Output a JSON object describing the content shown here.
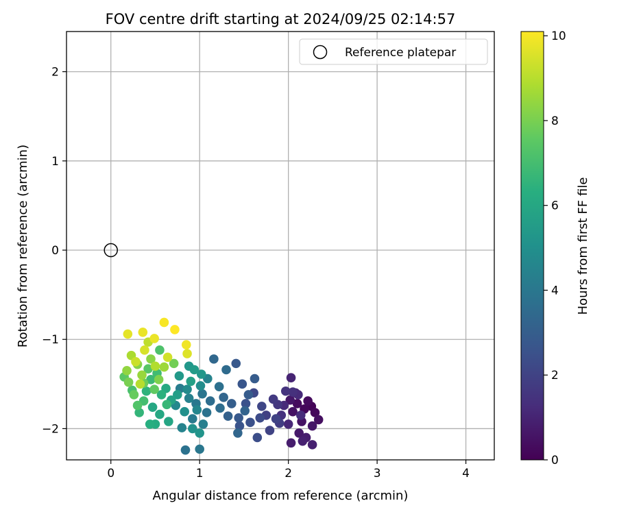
{
  "chart_data": {
    "type": "scatter",
    "title": "FOV centre drift starting at 2024/09/25 02:14:57",
    "xlabel": "Angular distance from reference (arcmin)",
    "ylabel": "Rotation from reference (arcmin)",
    "xlim": [
      -0.5,
      4.32
    ],
    "ylim": [
      -2.35,
      2.45
    ],
    "xticks": [
      0,
      1,
      2,
      3,
      4
    ],
    "yticks": [
      -2,
      -1,
      0,
      1,
      2
    ],
    "x_tick_labels": [
      "0",
      "1",
      "2",
      "3",
      "4"
    ],
    "y_tick_labels": [
      "−2",
      "−1",
      "0",
      "1",
      "2"
    ],
    "grid": true,
    "legend": {
      "placement": "top-right",
      "entries": [
        "Reference platepar"
      ]
    },
    "reference_point": {
      "x": 0,
      "y": 0,
      "label": "Reference platepar"
    },
    "colorbar": {
      "label": "Hours from first FF file",
      "colormap": "viridis",
      "range": [
        0,
        10.1
      ],
      "ticks": [
        0,
        2,
        4,
        6,
        8,
        10
      ],
      "tick_labels": [
        "0",
        "2",
        "4",
        "6",
        "8",
        "10"
      ]
    },
    "series": [
      {
        "points": [
          [
            2.26,
            -1.75,
            0.1
          ],
          [
            2.18,
            -1.78,
            0.2
          ],
          [
            2.3,
            -1.82,
            0.2
          ],
          [
            2.1,
            -1.72,
            0.3
          ],
          [
            2.22,
            -1.69,
            0.3
          ],
          [
            2.34,
            -1.9,
            0.4
          ],
          [
            2.05,
            -1.81,
            0.5
          ],
          [
            2.15,
            -1.92,
            0.5
          ],
          [
            2.27,
            -1.97,
            0.6
          ],
          [
            2.02,
            -1.68,
            0.6
          ],
          [
            2.12,
            -2.05,
            0.7
          ],
          [
            2.2,
            -2.1,
            0.8
          ],
          [
            2.03,
            -2.16,
            0.8
          ],
          [
            2.16,
            -2.14,
            0.9
          ],
          [
            2.27,
            -2.18,
            0.9
          ],
          [
            2.03,
            -1.43,
            1.0
          ],
          [
            2.08,
            -1.6,
            1.0
          ],
          [
            2.0,
            -1.95,
            1.1
          ],
          [
            2.11,
            -1.62,
            1.2
          ],
          [
            1.95,
            -1.74,
            1.2
          ],
          [
            2.14,
            -1.85,
            1.3
          ],
          [
            1.92,
            -1.85,
            1.4
          ],
          [
            2.05,
            -1.59,
            1.4
          ],
          [
            1.97,
            -1.58,
            1.5
          ],
          [
            1.88,
            -1.73,
            1.6
          ],
          [
            1.83,
            -1.67,
            1.7
          ],
          [
            1.9,
            -1.94,
            1.8
          ],
          [
            1.75,
            -1.85,
            1.9
          ],
          [
            1.79,
            -2.02,
            2.0
          ],
          [
            1.86,
            -1.89,
            2.0
          ],
          [
            1.7,
            -1.75,
            2.1
          ],
          [
            1.61,
            -1.6,
            2.2
          ],
          [
            1.68,
            -1.88,
            2.3
          ],
          [
            1.65,
            -2.1,
            2.4
          ],
          [
            1.57,
            -1.93,
            2.5
          ],
          [
            1.52,
            -1.72,
            2.5
          ],
          [
            1.45,
            -1.97,
            2.6
          ],
          [
            1.48,
            -1.5,
            2.7
          ],
          [
            1.41,
            -1.27,
            2.8
          ],
          [
            1.44,
            -1.88,
            2.8
          ],
          [
            1.55,
            -1.62,
            2.9
          ],
          [
            1.62,
            -1.44,
            2.9
          ],
          [
            1.36,
            -1.72,
            3.0
          ],
          [
            1.32,
            -1.86,
            3.1
          ],
          [
            1.51,
            -1.8,
            3.2
          ],
          [
            1.27,
            -1.65,
            3.3
          ],
          [
            1.43,
            -2.05,
            3.3
          ],
          [
            1.16,
            -1.22,
            3.4
          ],
          [
            1.3,
            -1.34,
            3.5
          ],
          [
            1.23,
            -1.77,
            3.6
          ],
          [
            1.12,
            -1.69,
            3.6
          ],
          [
            1.22,
            -1.53,
            3.7
          ],
          [
            1.08,
            -1.82,
            3.8
          ],
          [
            0.84,
            -2.24,
            3.8
          ],
          [
            1.03,
            -1.61,
            3.9
          ],
          [
            1.0,
            -2.23,
            4.0
          ],
          [
            0.96,
            -1.72,
            4.0
          ],
          [
            0.92,
            -1.89,
            4.1
          ],
          [
            0.78,
            -1.55,
            4.2
          ],
          [
            1.04,
            -1.95,
            4.3
          ],
          [
            0.88,
            -1.66,
            4.4
          ],
          [
            0.8,
            -1.99,
            4.5
          ],
          [
            1.09,
            -1.44,
            4.5
          ],
          [
            0.97,
            -1.79,
            4.6
          ],
          [
            0.73,
            -1.74,
            4.7
          ],
          [
            0.86,
            -1.56,
            4.8
          ],
          [
            1.01,
            -1.52,
            4.9
          ],
          [
            0.83,
            -1.81,
            5.0
          ],
          [
            0.92,
            -2.0,
            5.1
          ],
          [
            1.0,
            -2.05,
            5.2
          ],
          [
            0.88,
            -1.3,
            5.3
          ],
          [
            1.02,
            -1.39,
            5.3
          ],
          [
            0.77,
            -1.41,
            5.4
          ],
          [
            0.94,
            -1.34,
            5.5
          ],
          [
            0.75,
            -1.62,
            5.6
          ],
          [
            0.9,
            -1.47,
            5.7
          ],
          [
            0.68,
            -1.68,
            5.8
          ],
          [
            0.65,
            -1.92,
            5.9
          ],
          [
            0.55,
            -1.84,
            6.0
          ],
          [
            0.47,
            -1.76,
            6.0
          ],
          [
            0.62,
            -1.55,
            6.1
          ],
          [
            0.5,
            -1.95,
            6.2
          ],
          [
            0.44,
            -1.95,
            6.3
          ],
          [
            0.57,
            -1.62,
            6.4
          ],
          [
            0.4,
            -1.58,
            6.5
          ],
          [
            0.32,
            -1.82,
            6.6
          ],
          [
            0.63,
            -1.73,
            6.7
          ],
          [
            0.45,
            -1.45,
            6.8
          ],
          [
            0.52,
            -1.38,
            6.9
          ],
          [
            0.37,
            -1.69,
            7.0
          ],
          [
            0.24,
            -1.57,
            7.1
          ],
          [
            0.55,
            -1.12,
            7.2
          ],
          [
            0.3,
            -1.74,
            7.3
          ],
          [
            0.42,
            -1.33,
            7.4
          ],
          [
            0.15,
            -1.42,
            7.5
          ],
          [
            0.49,
            -1.56,
            7.6
          ],
          [
            0.26,
            -1.62,
            7.7
          ],
          [
            0.37,
            -1.49,
            7.8
          ],
          [
            0.71,
            -1.27,
            7.9
          ],
          [
            0.2,
            -1.48,
            8.0
          ],
          [
            0.54,
            -1.45,
            8.1
          ],
          [
            0.3,
            -1.28,
            8.2
          ],
          [
            0.45,
            -1.22,
            8.3
          ],
          [
            0.18,
            -1.35,
            8.4
          ],
          [
            0.35,
            -1.4,
            8.5
          ],
          [
            0.6,
            -1.31,
            8.6
          ],
          [
            0.23,
            -1.18,
            8.8
          ],
          [
            0.5,
            -1.3,
            8.9
          ],
          [
            0.33,
            -1.5,
            9.0
          ],
          [
            0.42,
            -1.03,
            9.1
          ],
          [
            0.28,
            -1.25,
            9.3
          ],
          [
            0.64,
            -1.2,
            9.4
          ],
          [
            0.38,
            -1.12,
            9.5
          ],
          [
            0.86,
            -1.16,
            9.6
          ],
          [
            0.19,
            -0.94,
            9.7
          ],
          [
            0.36,
            -0.92,
            9.8
          ],
          [
            0.49,
            -0.99,
            9.8
          ],
          [
            0.85,
            -1.06,
            9.9
          ],
          [
            0.6,
            -0.81,
            10.0
          ],
          [
            0.72,
            -0.89,
            10.1
          ]
        ]
      }
    ]
  }
}
